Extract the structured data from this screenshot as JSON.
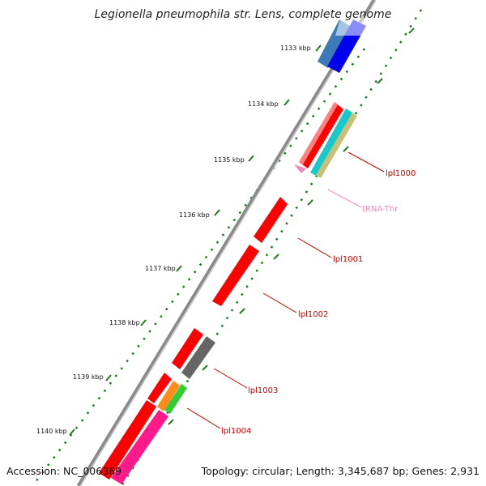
{
  "title": "Legionella pneumophila str. Lens, complete genome",
  "accession": "Accession: NC_006369",
  "topology": "Topology: circular; Length: 3,345,687 bp; Genes: 2,931",
  "colors": {
    "backbone": "#8c8c8c",
    "tick_dots": "#1f7a1f",
    "gene_red": "#ff0000",
    "label_red": "#cc0000",
    "trna_pink": "#f08ab8",
    "dark_gray": "#555555",
    "steel_blue": "#3d7ab8",
    "blue": "#0000ee",
    "cyan": "#18c8cc",
    "khaki": "#c8bf78",
    "orange": "#ff8c1a",
    "green": "#33cc33",
    "magenta": "#ff1a8c"
  },
  "ticks": [
    "1133 kbp",
    "1134 kbp",
    "1135 kbp",
    "1136 kbp",
    "1137 kbp",
    "1138 kbp",
    "1139 kbp",
    "1140 kbp"
  ],
  "labels": [
    {
      "text": "lpl1000",
      "color": "#cc0000"
    },
    {
      "text": "tRNA-Thr",
      "color": "#f08ab8"
    },
    {
      "text": "lpl1001",
      "color": "#cc0000"
    },
    {
      "text": "lpl1002",
      "color": "#cc0000"
    },
    {
      "text": "lpl1003",
      "color": "#cc0000"
    },
    {
      "text": "lpl1004",
      "color": "#cc0000"
    }
  ]
}
